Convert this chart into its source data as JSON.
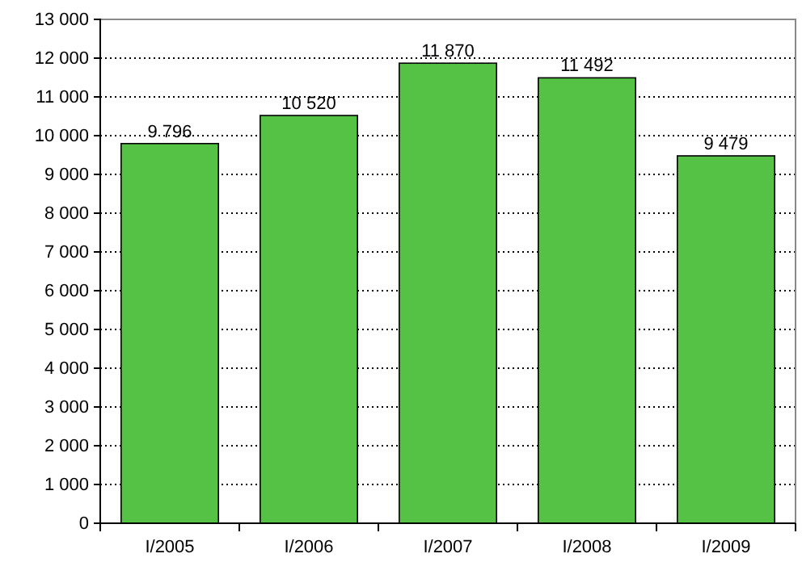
{
  "chart_data": {
    "type": "bar",
    "categories": [
      "I/2005",
      "I/2006",
      "I/2007",
      "I/2008",
      "I/2009"
    ],
    "values": [
      9796,
      10520,
      11870,
      11492,
      9479
    ],
    "value_labels": [
      "9 796",
      "10 520",
      "11 870",
      "11 492",
      "9 479"
    ],
    "color": "#55c145",
    "ylim": [
      0,
      13000
    ],
    "yticks": [
      0,
      {
        "value": 1000,
        "label": "1 000"
      },
      {
        "value": 2000,
        "label": "2 000"
      },
      {
        "value": 3000,
        "label": "3 000"
      },
      {
        "value": 4000,
        "label": "4 000"
      },
      {
        "value": 5000,
        "label": "5 000"
      },
      {
        "value": 6000,
        "label": "6 000"
      },
      {
        "value": 7000,
        "label": "7 000"
      },
      {
        "value": 8000,
        "label": "8 000"
      },
      {
        "value": 9000,
        "label": "9 000"
      },
      {
        "value": 10000,
        "label": "10 000"
      },
      {
        "value": 11000,
        "label": "11 000"
      },
      {
        "value": 12000,
        "label": "12 000"
      },
      {
        "value": 13000,
        "label": "13 000"
      }
    ],
    "grid": "y"
  }
}
